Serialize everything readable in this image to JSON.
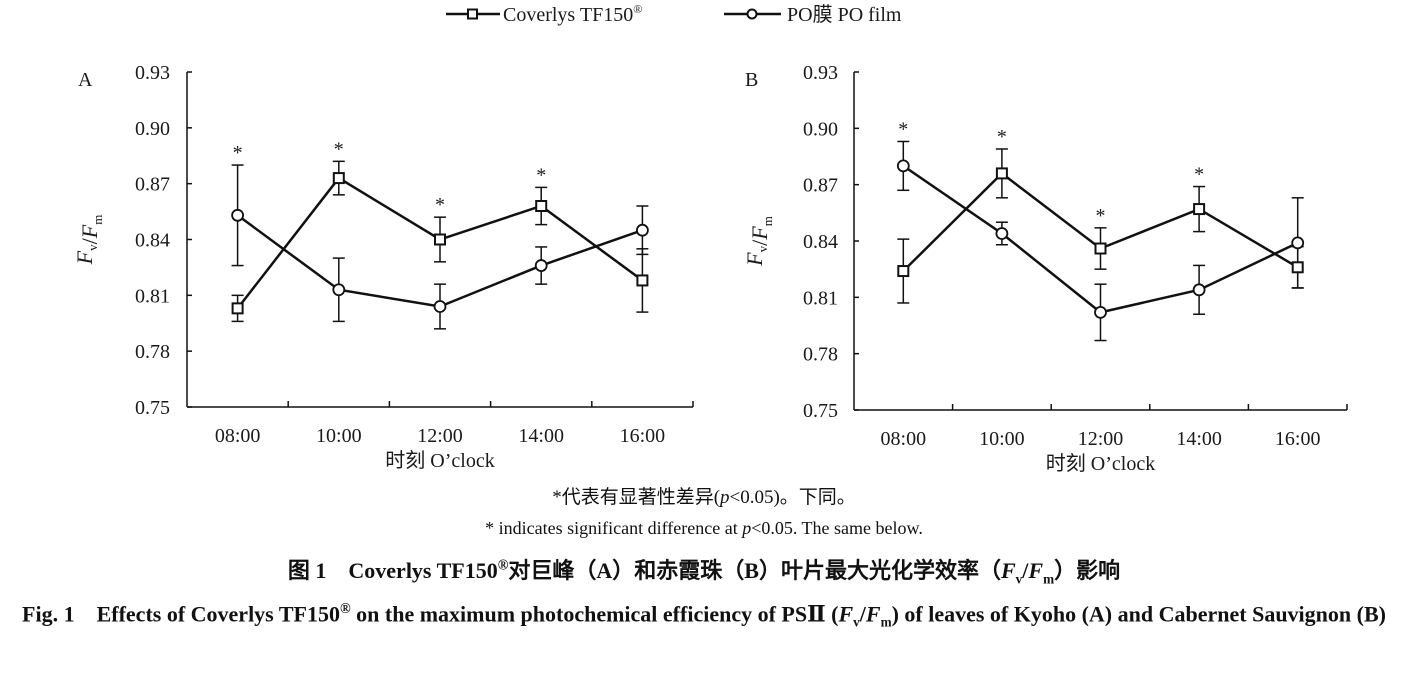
{
  "legend": {
    "series": [
      {
        "name": "Coverlys TF150",
        "suffix": "®",
        "marker": "square"
      },
      {
        "name": "PO膜 PO film",
        "suffix": "",
        "marker": "circle"
      }
    ]
  },
  "chart_data": [
    {
      "type": "line",
      "panel_label": "A",
      "title": "",
      "xlabel": "时刻 O’clock",
      "ylabel": "Fv/Fm",
      "categories": [
        "08:00",
        "10:00",
        "12:00",
        "14:00",
        "16:00"
      ],
      "ylim": [
        0.75,
        0.93
      ],
      "yticks": [
        "0.75",
        "0.78",
        "0.81",
        "0.84",
        "0.87",
        "0.90",
        "0.93"
      ],
      "grid": false,
      "legend": "top-center",
      "series": [
        {
          "name": "Coverlys TF150®",
          "marker": "square",
          "values": [
            0.803,
            0.873,
            0.84,
            0.858,
            0.818
          ],
          "error": [
            0.007,
            0.009,
            0.012,
            0.01,
            0.017
          ]
        },
        {
          "name": "PO膜 PO film",
          "marker": "circle",
          "values": [
            0.853,
            0.813,
            0.804,
            0.826,
            0.845
          ],
          "error": [
            0.027,
            0.017,
            0.012,
            0.01,
            0.013
          ]
        }
      ],
      "significance": [
        "*",
        "*",
        "*",
        "*",
        ""
      ]
    },
    {
      "type": "line",
      "panel_label": "B",
      "title": "",
      "xlabel": "时刻 O’clock",
      "ylabel": "Fv/Fm",
      "categories": [
        "08:00",
        "10:00",
        "12:00",
        "14:00",
        "16:00"
      ],
      "ylim": [
        0.75,
        0.93
      ],
      "yticks": [
        "0.75",
        "0.78",
        "0.81",
        "0.84",
        "0.87",
        "0.90",
        "0.93"
      ],
      "grid": false,
      "legend": "top-center",
      "series": [
        {
          "name": "Coverlys TF150®",
          "marker": "square",
          "values": [
            0.824,
            0.876,
            0.836,
            0.857,
            0.826
          ],
          "error": [
            0.017,
            0.013,
            0.011,
            0.012,
            0.011
          ]
        },
        {
          "name": "PO膜 PO film",
          "marker": "circle",
          "values": [
            0.88,
            0.844,
            0.802,
            0.814,
            0.839
          ],
          "error": [
            0.013,
            0.006,
            0.015,
            0.013,
            0.024
          ]
        }
      ],
      "significance": [
        "*",
        "*",
        "*",
        "*",
        ""
      ]
    }
  ],
  "notes": {
    "cn_prefix": "*代表有显著性差异(",
    "cn_p": "p",
    "cn_suffix": "<0.05)。下同。",
    "en_prefix": "* indicates significant difference at ",
    "en_p": "p",
    "en_suffix": "<0.05. The same below."
  },
  "caption": {
    "cn_part1": "图 1　Coverlys TF150",
    "cn_sup": "®",
    "cn_part2": "对巨峰（A）和赤霞珠（B）叶片最大光化学效率（",
    "cn_fv": "F",
    "cn_fv_sub": "v",
    "cn_slash": "/",
    "cn_fm": "F",
    "cn_fm_sub": "m",
    "cn_part3": "）影响",
    "en_part1": "Fig. 1　Effects of Coverlys TF150",
    "en_sup": "®",
    "en_part2": " on the maximum photochemical efficiency of PSⅡ (",
    "en_fv": "F",
    "en_fv_sub": "v",
    "en_slash": "/",
    "en_fm": "F",
    "en_fm_sub": "m",
    "en_part3": ") of leaves of Kyoho (A) and Cabernet Sauvignon (B)"
  }
}
